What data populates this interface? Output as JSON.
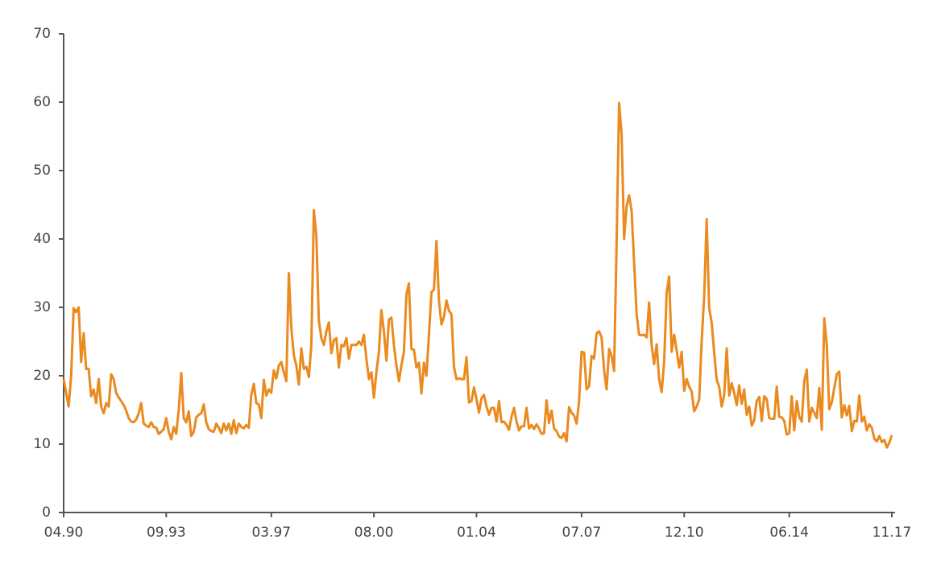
{
  "chart_data": {
    "type": "line",
    "color": "#ea8a1f",
    "categories": [
      "04.90",
      null,
      null,
      null,
      null,
      null,
      null,
      null,
      null,
      null,
      null,
      null,
      null,
      null,
      null,
      null,
      null,
      null,
      null,
      null,
      null,
      null,
      null,
      null,
      null,
      null,
      null,
      null,
      null,
      null,
      null,
      null,
      null,
      null,
      null,
      null,
      null,
      null,
      null,
      null,
      null,
      "09.93",
      null,
      null,
      null,
      null,
      null,
      null,
      null,
      null,
      null,
      null,
      null,
      null,
      null,
      null,
      null,
      null,
      null,
      null,
      null,
      null,
      null,
      null,
      null,
      null,
      null,
      null,
      null,
      null,
      null,
      null,
      null,
      null,
      null,
      null,
      null,
      null,
      null,
      null,
      null,
      null,
      null,
      "03.97",
      null,
      null,
      null,
      null,
      null,
      null,
      null,
      null,
      null,
      null,
      null,
      null,
      null,
      null,
      null,
      null,
      null,
      null,
      null,
      null,
      null,
      null,
      null,
      null,
      null,
      null,
      null,
      null,
      null,
      null,
      null,
      null,
      null,
      null,
      null,
      null,
      null,
      null,
      null,
      null,
      "08.00",
      null,
      null,
      null,
      null,
      null,
      null,
      null,
      null,
      null,
      null,
      null,
      null,
      null,
      null,
      null,
      null,
      null,
      null,
      null,
      null,
      null,
      null,
      null,
      null,
      null,
      null,
      null,
      null,
      null,
      null,
      null,
      null,
      null,
      null,
      null,
      null,
      null,
      null,
      null,
      null,
      "01.04",
      null,
      null,
      null,
      null,
      null,
      null,
      null,
      null,
      null,
      null,
      null,
      null,
      null,
      null,
      null,
      null,
      null,
      null,
      null,
      null,
      null,
      null,
      null,
      null,
      null,
      null,
      null,
      null,
      null,
      null,
      null,
      null,
      null,
      null,
      null,
      null,
      null,
      null,
      null,
      null,
      null,
      "07.07",
      null,
      null,
      null,
      null,
      null,
      null,
      null,
      null,
      null,
      null,
      null,
      null,
      null,
      null,
      null,
      null,
      null,
      null,
      null,
      null,
      null,
      null,
      null,
      null,
      null,
      null,
      null,
      null,
      null,
      null,
      null,
      null,
      null,
      null,
      null,
      null,
      null,
      null,
      null,
      null,
      "12.10",
      null,
      null,
      null,
      null,
      null,
      null,
      null,
      null,
      null,
      null,
      null,
      null,
      null,
      null,
      null,
      null,
      null,
      null,
      null,
      null,
      null,
      null,
      null,
      null,
      null,
      null,
      null,
      null,
      null,
      null,
      null,
      null,
      null,
      null,
      null,
      null,
      null,
      null,
      null,
      null,
      null,
      "06.14",
      null,
      null,
      null,
      null,
      null,
      null,
      null,
      null,
      null,
      null,
      null,
      null,
      null,
      null,
      null,
      null,
      null,
      null,
      null,
      null,
      null,
      null,
      null,
      null,
      null,
      null,
      null,
      null,
      null,
      null,
      null,
      null,
      null,
      null,
      null,
      null,
      null,
      null,
      null,
      null,
      "11.17"
    ],
    "values": [
      19.5,
      17.5,
      15.5,
      20,
      29.9,
      29.3,
      30,
      22,
      26.2,
      21,
      21,
      17,
      18,
      16,
      19.5,
      15.5,
      14.5,
      16,
      15.5,
      20.2,
      19.5,
      17.5,
      16.8,
      16.3,
      15.7,
      14.9,
      13.8,
      13.3,
      13.2,
      13.6,
      14.5,
      16,
      13,
      12.7,
      12.5,
      13.2,
      12.5,
      12.4,
      11.5,
      11.8,
      12.2,
      13.8,
      11.8,
      10.7,
      12.5,
      11.5,
      15,
      20.4,
      13.8,
      13.2,
      14.8,
      11.2,
      11.8,
      13.9,
      14.3,
      14.5,
      15.8,
      13.2,
      12.2,
      11.9,
      11.8,
      13,
      12.4,
      11.6,
      13,
      12,
      13,
      11.5,
      13.5,
      11.6,
      13,
      12.5,
      12.3,
      12.8,
      12.4,
      17.2,
      18.8,
      16,
      15.8,
      13.8,
      19.4,
      17.1,
      18,
      17.5,
      20.8,
      19.6,
      21.5,
      22,
      20.5,
      19.2,
      35,
      27,
      23,
      21.5,
      18.7,
      24,
      21,
      21.3,
      19.8,
      24.5,
      44.2,
      40.5,
      28,
      25.5,
      24.5,
      26.5,
      27.8,
      23.3,
      25.2,
      25.5,
      21.2,
      24.5,
      24.3,
      25.5,
      22.5,
      24.5,
      24.5,
      24.5,
      25,
      24.5,
      26,
      22.5,
      19.5,
      20.5,
      16.8,
      20.5,
      23.5,
      29.6,
      26.5,
      22.2,
      28.2,
      28.5,
      24.5,
      21.5,
      19.2,
      21.5,
      23.5,
      31.9,
      33.5,
      23.9,
      23.8,
      21.2,
      21.9,
      17.4,
      21.9,
      20,
      26,
      32.2,
      32.6,
      39.7,
      31,
      27.5,
      28.6,
      31,
      29.5,
      29,
      21.3,
      19.5,
      19.6,
      19.5,
      19.5,
      22.7,
      16.1,
      16.3,
      18.3,
      16.6,
      14.6,
      16.7,
      17.2,
      15.5,
      14.3,
      15.3,
      15.3,
      13.3,
      16.3,
      13.2,
      13.3,
      12.8,
      12.1,
      14,
      15.3,
      13.3,
      12,
      12.6,
      12.6,
      15.3,
      12.3,
      12.8,
      12.2,
      12.9,
      12.3,
      11.5,
      11.6,
      16.4,
      13.1,
      14.9,
      12.3,
      11.9,
      11.1,
      10.9,
      11.6,
      10.4,
      15.4,
      14.6,
      14.2,
      13,
      16.2,
      23.5,
      23.4,
      18,
      18.5,
      22.9,
      22.5,
      26.2,
      26.5,
      25.6,
      20.8,
      18,
      23.9,
      22.9,
      20.7,
      39.4,
      59.9,
      55.3,
      40,
      44.8,
      46.4,
      44.1,
      36.5,
      29,
      26,
      25.9,
      26,
      25.6,
      30.7,
      24.5,
      21.7,
      24.6,
      19.5,
      17.6,
      22,
      32.1,
      34.5,
      23.5,
      26,
      23.7,
      21.2,
      23.5,
      17.8,
      19.5,
      18.4,
      17.7,
      14.8,
      15.5,
      16.5,
      25,
      31.6,
      42.9,
      29.9,
      27.8,
      23.4,
      19.4,
      18.4,
      15.5,
      17.2,
      24,
      17.1,
      18.9,
      17.5,
      15.7,
      18.6,
      15.9,
      18,
      14.3,
      15.5,
      12.7,
      13.5,
      16.3,
      16.9,
      13.4,
      17,
      16.6,
      13.8,
      13.7,
      13.7,
      18.4,
      14,
      13.9,
      13.4,
      11.4,
      11.6,
      17,
      12,
      16.3,
      14,
      13.3,
      19.2,
      20.9,
      13.3,
      15.3,
      14.6,
      13.8,
      18.2,
      12.1,
      28.4,
      24.5,
      15.1,
      16.1,
      18.2,
      20.2,
      20.6,
      13.9,
      15.7,
      14.2,
      15.6,
      11.9,
      13.4,
      13.3,
      17.1,
      13.3,
      14,
      12,
      12.9,
      12.4,
      10.8,
      10.4,
      11.2,
      10.3,
      10.6,
      9.5,
      10.2,
      11.3
    ],
    "ylim": [
      0,
      70
    ],
    "yticks": [
      0,
      10,
      20,
      30,
      40,
      50,
      60,
      70
    ]
  }
}
